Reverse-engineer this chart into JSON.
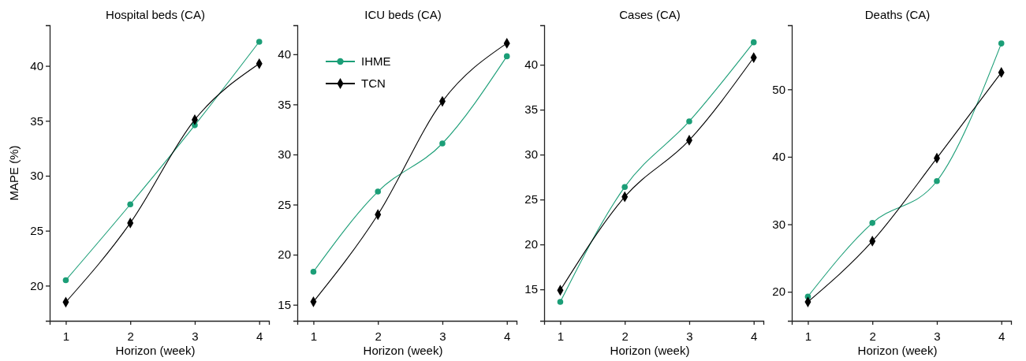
{
  "chart_data": [
    {
      "type": "line",
      "title": "Hospital beds (CA)",
      "xlabel": "Horizon (week)",
      "ylabel": "MAPE (%)",
      "x": [
        1,
        2,
        3,
        4
      ],
      "xlim": [
        0.75,
        4.15
      ],
      "xticks": [
        1,
        2,
        3,
        4
      ],
      "ylim": [
        16.8,
        43.7
      ],
      "yticks": [
        20,
        25,
        30,
        35,
        40
      ],
      "line_style": "solid",
      "series": [
        {
          "color": "#1b9e77",
          "marker": "circle",
          "values": [
            20.5,
            27.4,
            34.6,
            42.2
          ]
        },
        {
          "color": "#000000",
          "marker": "diamond",
          "values": [
            18.5,
            25.7,
            35.1,
            40.2
          ]
        }
      ]
    },
    {
      "type": "line",
      "title": "ICU beds (CA)",
      "xlabel": "Horizon (week)",
      "x": [
        1,
        2,
        3,
        4
      ],
      "xlim": [
        0.75,
        4.15
      ],
      "xticks": [
        1,
        2,
        3,
        4
      ],
      "ylim": [
        13.4,
        42.9
      ],
      "yticks": [
        15,
        20,
        25,
        30,
        35,
        40
      ],
      "legend": "top left",
      "line_style": "solid",
      "series": [
        {
          "name": "IHME",
          "color": "#1b9e77",
          "marker": "circle",
          "values": [
            18.3,
            26.3,
            31.1,
            39.8
          ]
        },
        {
          "name": "TCN",
          "color": "#000000",
          "marker": "diamond",
          "values": [
            15.3,
            24.0,
            35.3,
            41.1
          ]
        }
      ]
    },
    {
      "type": "line",
      "title": "Cases (CA)",
      "xlabel": "Horizon (week)",
      "x": [
        1,
        2,
        3,
        4
      ],
      "xlim": [
        0.75,
        4.15
      ],
      "xticks": [
        1,
        2,
        3,
        4
      ],
      "ylim": [
        11.5,
        44.4
      ],
      "yticks": [
        15,
        20,
        25,
        30,
        35,
        40
      ],
      "line_style": "solid",
      "series": [
        {
          "color": "#1b9e77",
          "marker": "circle",
          "values": [
            13.6,
            26.4,
            33.7,
            42.5
          ]
        },
        {
          "color": "#000000",
          "marker": "diamond",
          "values": [
            14.9,
            25.3,
            31.6,
            40.8
          ]
        }
      ]
    },
    {
      "type": "line",
      "title": "Deaths (CA)",
      "xlabel": "Horizon (week)",
      "x": [
        1,
        2,
        3,
        4
      ],
      "xlim": [
        0.75,
        4.15
      ],
      "xticks": [
        1,
        2,
        3,
        4
      ],
      "ylim": [
        15.7,
        59.5
      ],
      "yticks": [
        20,
        30,
        40,
        50
      ],
      "line_style": "solid",
      "series": [
        {
          "color": "#1b9e77",
          "marker": "circle",
          "values": [
            19.3,
            30.2,
            36.4,
            56.8
          ]
        },
        {
          "color": "#000000",
          "marker": "diamond",
          "values": [
            18.5,
            27.5,
            39.8,
            52.5
          ]
        }
      ]
    }
  ]
}
